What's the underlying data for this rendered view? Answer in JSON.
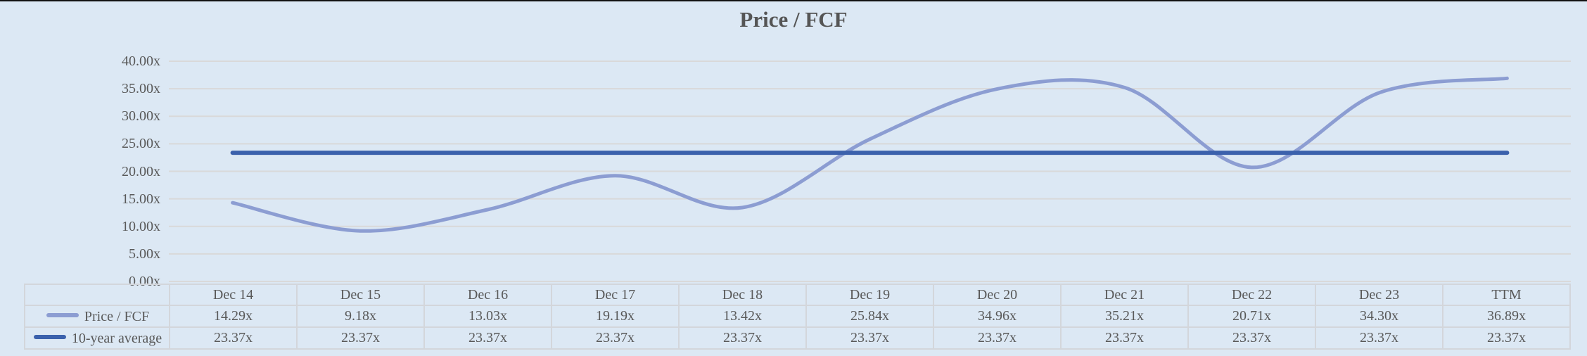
{
  "chart_data": {
    "type": "line",
    "title": "Price / FCF",
    "categories": [
      "Dec 14",
      "Dec 15",
      "Dec 16",
      "Dec 17",
      "Dec 18",
      "Dec 19",
      "Dec 20",
      "Dec 21",
      "Dec 22",
      "Dec 23",
      "TTM"
    ],
    "series": [
      {
        "name": "Price / FCF",
        "values": [
          14.29,
          9.18,
          13.03,
          19.19,
          13.42,
          25.84,
          34.96,
          35.21,
          20.71,
          34.3,
          36.89
        ],
        "color": "#8c9dd2",
        "line_width": 5,
        "smooth": true
      },
      {
        "name": "10-year average",
        "values": [
          23.37,
          23.37,
          23.37,
          23.37,
          23.37,
          23.37,
          23.37,
          23.37,
          23.37,
          23.37,
          23.37
        ],
        "color": "#3b61ac",
        "line_width": 6,
        "smooth": false
      }
    ],
    "y_axis": {
      "min": 0,
      "max": 40,
      "step": 5,
      "tick_labels": [
        "40.00x",
        "35.00x",
        "30.00x",
        "25.00x",
        "20.00x",
        "15.00x",
        "10.00x",
        "5.00x",
        "0.00x"
      ]
    },
    "grid": true,
    "legend_position": "table-left"
  },
  "table": {
    "rows": [
      {
        "label": "Price / FCF",
        "swatch_color": "#8c9dd2",
        "values": [
          "14.29x",
          "9.18x",
          "13.03x",
          "19.19x",
          "13.42x",
          "25.84x",
          "34.96x",
          "35.21x",
          "20.71x",
          "34.30x",
          "36.89x"
        ]
      },
      {
        "label": "10-year average",
        "swatch_color": "#3b61ac",
        "values": [
          "23.37x",
          "23.37x",
          "23.37x",
          "23.37x",
          "23.37x",
          "23.37x",
          "23.37x",
          "23.37x",
          "23.37x",
          "23.37x",
          "23.37x"
        ]
      }
    ]
  },
  "colors": {
    "background": "#dce8f4",
    "gridline": "#d9d9d9",
    "table_border": "#d3d6db",
    "text": "#595959",
    "top_edge": "#121212"
  }
}
